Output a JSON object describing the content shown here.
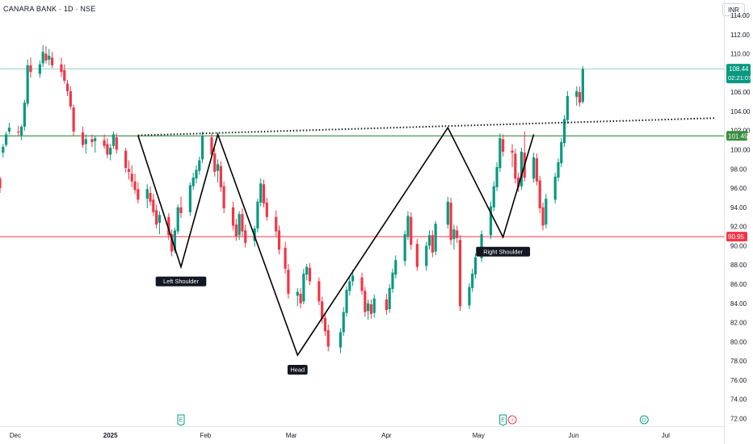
{
  "header": {
    "symbol": "CANARA BANK · 1D · NSE",
    "currency": "INR"
  },
  "chart_data": {
    "type": "candlestick",
    "y_axis": {
      "ticks": [
        "114.00",
        "112.00",
        "110.00",
        "108.00",
        "106.00",
        "104.00",
        "102.00",
        "100.00",
        "98.00",
        "96.00",
        "94.00",
        "92.00",
        "90.00",
        "88.00",
        "86.00",
        "84.00",
        "82.00",
        "80.00",
        "78.00",
        "76.00",
        "74.00",
        "72.00"
      ],
      "range": [
        71.2,
        115.6
      ],
      "position": "right"
    },
    "x_axis": {
      "ticks": [
        "Dec",
        "2025",
        "Feb",
        "Mar",
        "Apr",
        "May",
        "Jun",
        "Jul"
      ],
      "range": [
        "2024-11-26",
        "2025-07-20"
      ]
    },
    "price_labels": {
      "last": {
        "value": "108.44",
        "timer": "02:21:07",
        "color": "#089981"
      },
      "resistance": {
        "value": "101.45",
        "color": "#388e3c"
      },
      "support": {
        "value": "90.95",
        "color": "#f23645"
      }
    },
    "horizontal_lines": [
      {
        "price": 108.44,
        "color": "#089981"
      },
      {
        "price": 101.45,
        "color": "#388e3c"
      },
      {
        "price": 90.95,
        "color": "#f23645"
      }
    ],
    "trendline_dotted": {
      "from": [
        "2025-01-10",
        101.5
      ],
      "to": [
        "2025-07-17",
        103.3
      ]
    },
    "pattern_zigzag": [
      [
        "2025-01-10",
        101.5
      ],
      [
        "2025-01-24",
        87.8
      ],
      [
        "2025-02-05",
        101.6
      ],
      [
        "2025-03-03",
        78.6
      ],
      [
        "2025-04-21",
        102.3
      ],
      [
        "2025-05-09",
        90.9
      ],
      [
        "2025-05-19",
        101.6
      ]
    ],
    "pattern_labels": [
      {
        "text": "Left Shoulder",
        "date": "2025-01-24",
        "price": 87.8
      },
      {
        "text": "Head",
        "date": "2025-03-03",
        "price": 78.6
      },
      {
        "text": "Right Shoulder",
        "date": "2025-05-09",
        "price": 90.9
      }
    ],
    "event_markers": [
      {
        "date": "2025-01-24",
        "symbol": "E"
      },
      {
        "date": "2025-05-09",
        "symbol": "E"
      },
      {
        "date": "2025-05-12",
        "symbol": "⚡"
      },
      {
        "date": "2025-06-24",
        "symbol": "D"
      }
    ],
    "candles": [
      [
        "2024-11-26",
        97,
        97.2,
        95.5,
        96
      ],
      [
        "2024-11-27",
        99.7,
        100.6,
        99.2,
        100.3
      ],
      [
        "2024-11-28",
        100.5,
        101.9,
        100.3,
        101.6
      ],
      [
        "2024-11-29",
        101.9,
        102.8,
        101.6,
        102.3
      ],
      [
        "2024-12-02",
        101.9,
        102.5,
        101.4,
        101.8
      ],
      [
        "2024-12-03",
        101.5,
        102.6,
        101.0,
        102.4
      ],
      [
        "2024-12-04",
        102.4,
        105.2,
        102.0,
        104.9
      ],
      [
        "2024-12-05",
        104.8,
        109.4,
        104.5,
        108.8
      ],
      [
        "2024-12-06",
        108.8,
        109.6,
        107.5,
        108.1
      ],
      [
        "2024-12-09",
        107.9,
        109.3,
        107.5,
        108.9
      ],
      [
        "2024-12-10",
        109.0,
        110.9,
        108.6,
        110.2
      ],
      [
        "2024-12-11",
        110.0,
        110.8,
        109.0,
        109.3
      ],
      [
        "2024-12-12",
        109.4,
        110.5,
        108.8,
        109.8
      ],
      [
        "2024-12-13",
        109.6,
        110.2,
        108.5,
        108.8
      ],
      [
        "2024-12-16",
        108.9,
        109.6,
        107.6,
        108.1
      ],
      [
        "2024-12-17",
        108.3,
        108.9,
        106.9,
        107.2
      ],
      [
        "2024-12-18",
        106.9,
        107.3,
        105.6,
        106.1
      ],
      [
        "2024-12-19",
        106.1,
        106.6,
        104.2,
        104.5
      ],
      [
        "2024-12-20",
        104.4,
        104.7,
        101.5,
        101.9
      ],
      [
        "2024-12-23",
        101.8,
        102.4,
        100.2,
        100.5
      ],
      [
        "2024-12-24",
        100.6,
        101.6,
        99.6,
        101.1
      ],
      [
        "2024-12-26",
        101.1,
        101.6,
        100.3,
        100.8
      ],
      [
        "2024-12-27",
        100.9,
        101.5,
        99.7,
        101.2
      ],
      [
        "2024-12-30",
        101.0,
        101.6,
        100.1,
        100.4
      ],
      [
        "2024-12-31",
        100.6,
        101.2,
        99.1,
        99.5
      ],
      [
        "2025-01-01",
        99.5,
        100.6,
        98.9,
        100.2
      ],
      [
        "2025-01-02",
        100.4,
        101.9,
        100.1,
        101.6
      ],
      [
        "2025-01-03",
        101.3,
        101.7,
        99.6,
        100.0
      ],
      [
        "2025-01-06",
        99.9,
        100.2,
        97.6,
        98.1
      ],
      [
        "2025-01-07",
        98.0,
        98.9,
        96.9,
        97.7
      ],
      [
        "2025-01-08",
        97.5,
        98.4,
        96.1,
        96.7
      ],
      [
        "2025-01-09",
        96.7,
        97.5,
        95.4,
        95.8
      ],
      [
        "2025-01-10",
        95.9,
        96.6,
        94.4,
        94.8
      ],
      [
        "2025-01-13",
        94.9,
        96.4,
        93.9,
        95.9
      ],
      [
        "2025-01-14",
        95.5,
        96.2,
        94.2,
        94.6
      ],
      [
        "2025-01-15",
        94.8,
        95.4,
        93.1,
        93.5
      ],
      [
        "2025-01-16",
        93.7,
        94.3,
        91.8,
        92.2
      ],
      [
        "2025-01-17",
        92.4,
        93.6,
        91.2,
        93.2
      ],
      [
        "2025-01-20",
        93.0,
        93.4,
        90.6,
        91.1
      ],
      [
        "2025-01-21",
        91.2,
        91.7,
        88.9,
        89.4
      ],
      [
        "2025-01-22",
        89.5,
        91.9,
        89.2,
        91.6
      ],
      [
        "2025-01-23",
        91.5,
        94.3,
        91.2,
        94.0
      ],
      [
        "2025-01-24",
        94.0,
        95.1,
        92.9,
        93.4
      ],
      [
        "2025-01-27",
        93.5,
        96.6,
        93.1,
        96.3
      ],
      [
        "2025-01-28",
        96.2,
        97.6,
        95.8,
        97.1
      ],
      [
        "2025-01-29",
        97.0,
        98.4,
        96.5,
        97.9
      ],
      [
        "2025-01-30",
        97.8,
        99.3,
        97.4,
        98.9
      ],
      [
        "2025-01-31",
        99.0,
        101.9,
        98.6,
        101.4
      ],
      [
        "2025-02-03",
        101.3,
        101.7,
        99.1,
        99.5
      ],
      [
        "2025-02-04",
        99.6,
        100.1,
        97.2,
        97.7
      ],
      [
        "2025-02-05",
        97.8,
        99.0,
        96.6,
        98.5
      ],
      [
        "2025-02-06",
        98.3,
        98.8,
        95.6,
        96.1
      ],
      [
        "2025-02-07",
        96.2,
        96.7,
        93.4,
        93.9
      ],
      [
        "2025-02-10",
        94.0,
        94.6,
        91.6,
        92.1
      ],
      [
        "2025-02-11",
        92.2,
        92.8,
        90.5,
        91.0
      ],
      [
        "2025-02-12",
        91.1,
        93.6,
        90.6,
        93.3
      ],
      [
        "2025-02-13",
        93.3,
        93.9,
        91.0,
        91.5
      ],
      [
        "2025-02-14",
        91.6,
        92.2,
        89.8,
        90.3
      ],
      [
        "2025-02-17",
        90.5,
        92.1,
        89.9,
        91.8
      ],
      [
        "2025-02-18",
        91.8,
        94.9,
        91.4,
        94.6
      ],
      [
        "2025-02-19",
        94.5,
        97.0,
        94.1,
        96.5
      ],
      [
        "2025-02-20",
        96.4,
        96.9,
        94.0,
        94.4
      ],
      [
        "2025-02-21",
        94.5,
        95.0,
        92.6,
        93.0
      ],
      [
        "2025-02-24",
        93.0,
        93.7,
        91.0,
        91.5
      ],
      [
        "2025-02-25",
        91.6,
        92.1,
        89.1,
        89.6
      ],
      [
        "2025-02-27",
        89.8,
        90.4,
        87.1,
        87.6
      ],
      [
        "2025-02-28",
        87.5,
        88.1,
        84.5,
        85.0
      ],
      [
        "2025-03-03",
        84.8,
        85.6,
        83.7,
        85.2
      ],
      [
        "2025-03-04",
        85.0,
        85.6,
        83.5,
        84.0
      ],
      [
        "2025-03-05",
        84.2,
        87.6,
        83.9,
        87.1
      ],
      [
        "2025-03-06",
        87.0,
        88.1,
        86.4,
        87.8
      ],
      [
        "2025-03-07",
        87.7,
        88.2,
        85.9,
        86.3
      ],
      [
        "2025-03-10",
        86.3,
        86.7,
        83.8,
        84.2
      ],
      [
        "2025-03-11",
        84.2,
        84.7,
        81.9,
        82.4
      ],
      [
        "2025-03-12",
        82.5,
        83.0,
        80.6,
        81.1
      ],
      [
        "2025-03-13",
        81.2,
        81.8,
        79.0,
        79.5
      ],
      [
        "2025-03-17",
        79.4,
        81.4,
        78.8,
        81.0
      ],
      [
        "2025-03-18",
        81.0,
        83.6,
        80.6,
        83.1
      ],
      [
        "2025-03-19",
        83.0,
        85.8,
        82.6,
        85.4
      ],
      [
        "2025-03-20",
        85.3,
        86.8,
        84.8,
        86.3
      ],
      [
        "2025-03-21",
        86.3,
        87.5,
        85.8,
        86.9
      ],
      [
        "2025-03-24",
        86.7,
        87.2,
        84.9,
        85.3
      ],
      [
        "2025-03-25",
        85.3,
        85.7,
        82.6,
        83.1
      ],
      [
        "2025-03-26",
        83.2,
        84.4,
        82.3,
        84.0
      ],
      [
        "2025-03-27",
        83.9,
        84.4,
        82.4,
        82.9
      ],
      [
        "2025-03-28",
        83.0,
        84.9,
        82.5,
        84.5
      ],
      [
        "2025-04-01",
        84.4,
        85.0,
        82.8,
        83.3
      ],
      [
        "2025-04-02",
        83.4,
        86.0,
        83.0,
        85.6
      ],
      [
        "2025-04-03",
        85.5,
        87.6,
        85.1,
        87.2
      ],
      [
        "2025-04-04",
        87.0,
        89.0,
        86.6,
        88.5
      ],
      [
        "2025-04-07",
        88.4,
        91.6,
        87.9,
        91.2
      ],
      [
        "2025-04-08",
        91.0,
        93.6,
        90.6,
        93.1
      ],
      [
        "2025-04-09",
        93.0,
        93.5,
        89.6,
        90.1
      ],
      [
        "2025-04-11",
        90.2,
        90.7,
        87.4,
        87.8
      ],
      [
        "2025-04-14",
        87.9,
        90.4,
        87.4,
        90.0
      ],
      [
        "2025-04-15",
        90.0,
        91.6,
        89.6,
        91.1
      ],
      [
        "2025-04-16",
        91.1,
        91.6,
        88.8,
        89.3
      ],
      [
        "2025-04-17",
        89.4,
        92.6,
        89.0,
        92.3
      ],
      [
        "2025-04-21",
        92.2,
        95.1,
        91.8,
        94.6
      ],
      [
        "2025-04-22",
        94.5,
        95.0,
        90.1,
        90.6
      ],
      [
        "2025-04-23",
        90.7,
        92.2,
        89.6,
        91.7
      ],
      [
        "2025-04-24",
        91.6,
        92.1,
        90.3,
        90.8
      ],
      [
        "2025-04-25",
        90.6,
        91.1,
        83.2,
        83.7
      ],
      [
        "2025-04-28",
        83.8,
        86.1,
        83.4,
        85.7
      ],
      [
        "2025-04-29",
        85.6,
        87.6,
        85.2,
        87.1
      ],
      [
        "2025-04-30",
        87.0,
        89.2,
        86.6,
        88.8
      ],
      [
        "2025-05-02",
        88.7,
        91.6,
        88.3,
        91.2
      ],
      [
        "2025-05-05",
        91.1,
        94.6,
        90.7,
        94.1
      ],
      [
        "2025-05-06",
        94.0,
        96.7,
        93.6,
        96.2
      ],
      [
        "2025-05-07",
        96.1,
        98.7,
        95.7,
        98.2
      ],
      [
        "2025-05-08",
        98.1,
        101.7,
        97.7,
        101.2
      ],
      [
        "2025-05-09",
        101.1,
        101.6,
        99.3,
        99.8
      ],
      [
        "2025-05-12",
        99.9,
        100.6,
        98.2,
        99.7
      ],
      [
        "2025-05-13",
        99.6,
        100.1,
        96.5,
        97.0
      ],
      [
        "2025-05-14",
        97.1,
        97.6,
        95.6,
        96.1
      ],
      [
        "2025-05-15",
        96.2,
        100.2,
        95.8,
        99.8
      ],
      [
        "2025-05-16",
        99.7,
        101.9,
        96.7,
        97.1
      ],
      [
        "2025-05-19",
        97.0,
        99.7,
        96.6,
        99.2
      ],
      [
        "2025-05-20",
        99.1,
        99.6,
        96.3,
        96.7
      ],
      [
        "2025-05-21",
        96.8,
        97.3,
        93.4,
        93.9
      ],
      [
        "2025-05-22",
        94.0,
        94.5,
        91.6,
        92.1
      ],
      [
        "2025-05-23",
        92.2,
        95.4,
        91.8,
        94.9
      ],
      [
        "2025-05-26",
        94.8,
        97.6,
        94.4,
        97.2
      ],
      [
        "2025-05-27",
        97.1,
        99.1,
        96.7,
        98.7
      ],
      [
        "2025-05-28",
        98.6,
        101.2,
        98.2,
        100.8
      ],
      [
        "2025-05-29",
        100.7,
        103.6,
        100.3,
        103.2
      ],
      [
        "2025-05-30",
        103.1,
        106.1,
        102.7,
        105.6
      ],
      [
        "2025-06-02",
        105.5,
        106.6,
        104.6,
        106.1
      ],
      [
        "2025-06-03",
        106.0,
        106.6,
        104.5,
        104.9
      ],
      [
        "2025-06-04",
        105.0,
        108.7,
        104.8,
        108.4
      ]
    ]
  }
}
